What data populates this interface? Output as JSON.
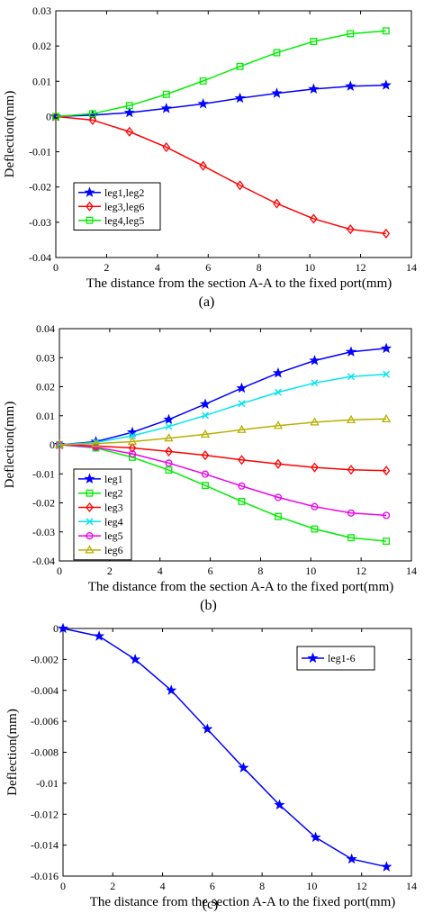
{
  "chart_data": [
    {
      "type": "line",
      "caption": "(a)",
      "xlabel": "The distance from the section A-A to the fixed port(mm)",
      "ylabel": "Deflection(mm)",
      "xlim": [
        0,
        14
      ],
      "ylim": [
        -0.04,
        0.03
      ],
      "xticks": [
        "0",
        "2",
        "4",
        "6",
        "8",
        "10",
        "12",
        "14"
      ],
      "yticks": [
        "-0.04",
        "-0.03",
        "-0.02",
        "-0.01",
        "0",
        "0.01",
        "0.02",
        "0.03"
      ],
      "grid": false,
      "legend_position": "lower-left",
      "x": [
        0,
        1.45,
        2.9,
        4.35,
        5.8,
        7.25,
        8.7,
        10.15,
        11.6,
        13.0
      ],
      "series": [
        {
          "name": "leg1,leg2",
          "color": "#0000ff",
          "marker": "star",
          "values": [
            0,
            0.0004,
            0.0011,
            0.0023,
            0.0036,
            0.0052,
            0.0066,
            0.0078,
            0.0086,
            0.0089
          ]
        },
        {
          "name": "leg3,leg6",
          "color": "#ff0000",
          "marker": "diamond",
          "values": [
            0,
            -0.001,
            -0.0043,
            -0.0087,
            -0.014,
            -0.0195,
            -0.0247,
            -0.029,
            -0.032,
            -0.0332
          ]
        },
        {
          "name": "leg4,leg5",
          "color": "#00ee00",
          "marker": "square",
          "values": [
            0,
            0.0008,
            0.0031,
            0.0063,
            0.0101,
            0.0142,
            0.0181,
            0.0213,
            0.0235,
            0.0243
          ]
        }
      ]
    },
    {
      "type": "line",
      "caption": "(b)",
      "xlabel": "The distance from the section A-A to the fixed port(mm)",
      "ylabel": "Deflection(mm)",
      "xlim": [
        0,
        14
      ],
      "ylim": [
        -0.04,
        0.04
      ],
      "xticks": [
        "0",
        "2",
        "4",
        "6",
        "8",
        "10",
        "12",
        "14"
      ],
      "yticks": [
        "-0.04",
        "-0.03",
        "-0.02",
        "-0.01",
        "0",
        "0.01",
        "0.02",
        "0.03",
        "0.04"
      ],
      "grid": false,
      "legend_position": "lower-left",
      "x": [
        0,
        1.45,
        2.9,
        4.35,
        5.8,
        7.25,
        8.7,
        10.15,
        11.6,
        13.0
      ],
      "series": [
        {
          "name": "leg1",
          "color": "#0000ff",
          "marker": "star",
          "values": [
            0,
            0.0011,
            0.0043,
            0.0087,
            0.014,
            0.0195,
            0.0247,
            0.029,
            0.032,
            0.0332
          ]
        },
        {
          "name": "leg2",
          "color": "#00ee00",
          "marker": "square",
          "values": [
            0,
            -0.0011,
            -0.0043,
            -0.0087,
            -0.014,
            -0.0195,
            -0.0247,
            -0.029,
            -0.032,
            -0.0332
          ]
        },
        {
          "name": "leg3",
          "color": "#ff0000",
          "marker": "diamond",
          "values": [
            0,
            -0.0004,
            -0.0011,
            -0.0023,
            -0.0036,
            -0.0052,
            -0.0066,
            -0.0078,
            -0.0086,
            -0.0089
          ]
        },
        {
          "name": "leg4",
          "color": "#00e5ee",
          "marker": "x",
          "values": [
            0,
            0.0008,
            0.0031,
            0.0063,
            0.0101,
            0.0142,
            0.0181,
            0.0213,
            0.0235,
            0.0243
          ]
        },
        {
          "name": "leg5",
          "color": "#ee00ee",
          "marker": "circle",
          "values": [
            0,
            -0.0008,
            -0.0031,
            -0.0063,
            -0.0101,
            -0.0142,
            -0.0181,
            -0.0213,
            -0.0235,
            -0.0243
          ]
        },
        {
          "name": "leg6",
          "color": "#b8b000",
          "marker": "triangle",
          "values": [
            0,
            0.0004,
            0.0011,
            0.0023,
            0.0036,
            0.0052,
            0.0066,
            0.0078,
            0.0086,
            0.0089
          ]
        }
      ]
    },
    {
      "type": "line",
      "caption": "(c)",
      "xlabel": "The distance from the section A-A to the fixed port(mm)",
      "ylabel": "Deflection(mm)",
      "xlim": [
        0,
        14
      ],
      "ylim": [
        -0.016,
        0
      ],
      "xticks": [
        "0",
        "2",
        "4",
        "6",
        "8",
        "10",
        "12",
        "14"
      ],
      "yticks": [
        "-0.016",
        "-0.014",
        "-0.012",
        "-0.01",
        "-0.008",
        "-0.006",
        "-0.004",
        "-0.002",
        "0"
      ],
      "grid": false,
      "legend_position": "top-right",
      "x": [
        0,
        1.45,
        2.9,
        4.35,
        5.8,
        7.25,
        8.7,
        10.15,
        11.6,
        13.0
      ],
      "series": [
        {
          "name": "leg1-6",
          "color": "#0000ff",
          "marker": "star",
          "values": [
            0,
            -0.0005,
            -0.002,
            -0.004,
            -0.0065,
            -0.009,
            -0.0114,
            -0.0135,
            -0.0149,
            -0.0154
          ]
        }
      ]
    }
  ]
}
